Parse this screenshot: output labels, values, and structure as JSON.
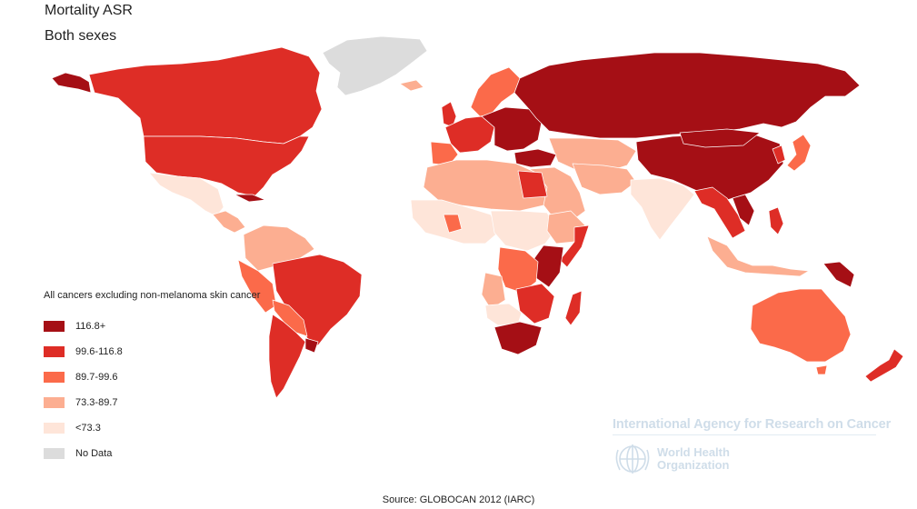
{
  "header": {
    "title": "Mortality ASR",
    "subtitle": "Both sexes"
  },
  "legend": {
    "title": "All cancers excluding non-melanoma skin cancer",
    "items": [
      {
        "label": "116.8+",
        "color": "#a50f15"
      },
      {
        "label": "99.6-116.8",
        "color": "#de2d26"
      },
      {
        "label": "89.7-99.6",
        "color": "#fb6a4a"
      },
      {
        "label": "73.3-89.7",
        "color": "#fcae91"
      },
      {
        "label": "<73.3",
        "color": "#fee5d9"
      },
      {
        "label": "No Data",
        "color": "#dcdcdc"
      }
    ]
  },
  "logo": {
    "iarc": "International Agency for Research on Cancer",
    "who_line1": "World Health",
    "who_line2": "Organization"
  },
  "source": "Source: GLOBOCAN 2012 (IARC)"
}
